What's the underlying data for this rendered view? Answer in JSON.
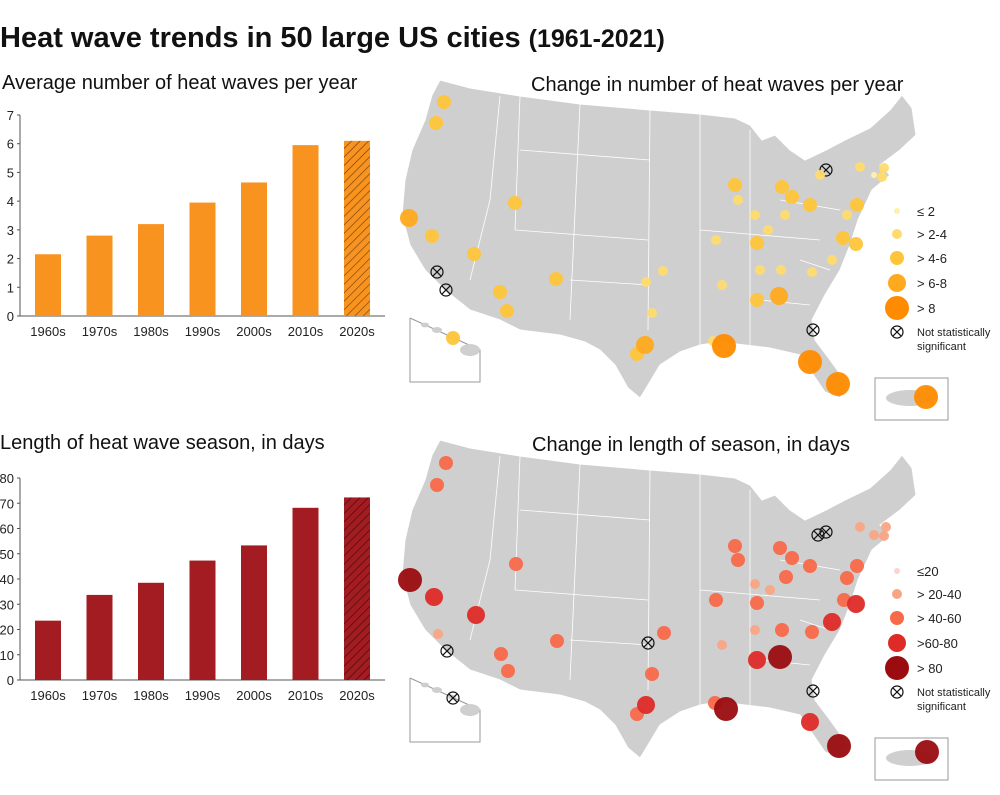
{
  "title": "Heat wave trends in 50 large US cities",
  "title_years": "(1961-2021)",
  "chart_data": [
    {
      "type": "bar",
      "title": "Average number of heat waves per year",
      "categories": [
        "1960s",
        "1970s",
        "1980s",
        "1990s",
        "2000s",
        "2010s",
        "2020s"
      ],
      "values": [
        2.15,
        2.8,
        3.2,
        3.95,
        4.65,
        5.95,
        6.1
      ],
      "ylim": [
        0,
        7
      ],
      "yticks": [
        "0",
        "1",
        "2",
        "3",
        "4",
        "5",
        "6",
        "7"
      ],
      "color": "#f7931e",
      "hatched_category": "2020s"
    },
    {
      "type": "bar",
      "title": "Length of heat wave season, in days",
      "categories": [
        "1960s",
        "1970s",
        "1980s",
        "1990s",
        "2000s",
        "2010s",
        "2020s"
      ],
      "values": [
        23.5,
        33.7,
        38.5,
        47.3,
        53.3,
        68.2,
        72.3
      ],
      "ylim": [
        0,
        80
      ],
      "yticks": [
        "0",
        "10",
        "20",
        "30",
        "40",
        "50",
        "60",
        "70",
        "80"
      ],
      "color": "#a31c22",
      "hatched_category": "2020s"
    }
  ],
  "maps": [
    {
      "title": "Change in number of heat waves per year",
      "legend": [
        {
          "label": "≤ 2",
          "color": "#fff1a8"
        },
        {
          "label": "> 2-4",
          "color": "#ffdb6e"
        },
        {
          "label": "> 4-6",
          "color": "#ffc53a"
        },
        {
          "label": "> 6-8",
          "color": "#ffaa1e"
        },
        {
          "label": "> 8",
          "color": "#ff8c00"
        }
      ],
      "not_significant_1": "Not statistically",
      "not_significant_2": "significant"
    },
    {
      "title": "Change in length of season, in days",
      "legend": [
        {
          "label": "≤20",
          "color": "#fbd3d3"
        },
        {
          "label": "> 20-40",
          "color": "#f9a585"
        },
        {
          "label": "> 40-60",
          "color": "#f8694a"
        },
        {
          "label": ">60-80",
          "color": "#de2b28"
        },
        {
          "label": "> 80",
          "color": "#9a0c0f"
        }
      ],
      "not_significant_1": "Not statistically",
      "not_significant_2": "significant"
    }
  ],
  "colors": {
    "map_fill": "#cfcfcf",
    "state_lines": "#ffffff"
  }
}
